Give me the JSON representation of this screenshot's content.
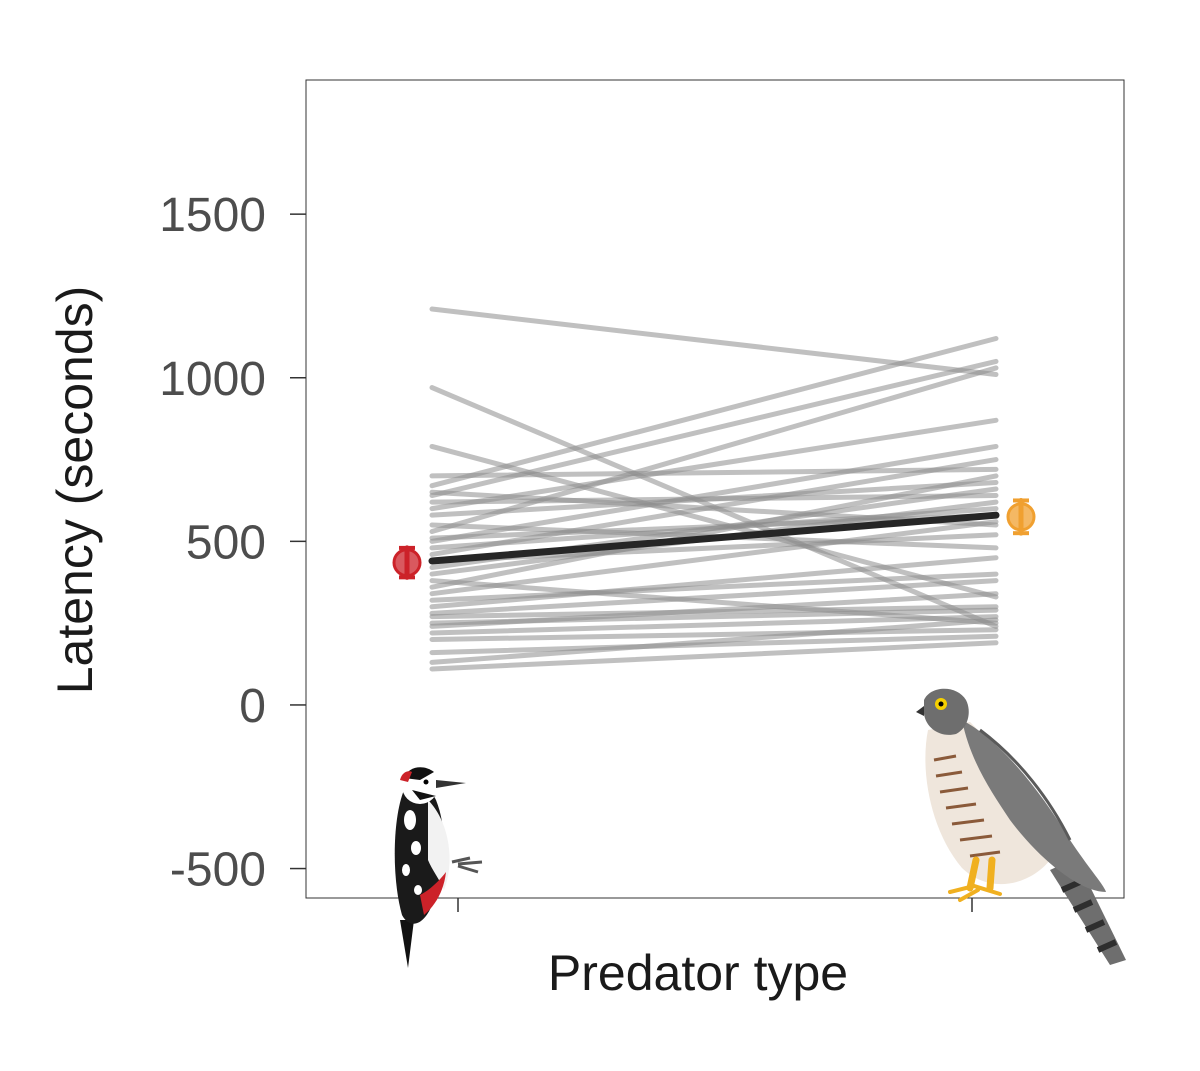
{
  "chart_data": {
    "type": "line",
    "xlabel": "Predator type",
    "ylabel": "Latency (seconds)",
    "ylim": [
      -590,
      1910
    ],
    "yticks": [
      -500,
      0,
      500,
      1000,
      1500
    ],
    "categories": [
      "Woodpecker",
      "Sparrowhawk"
    ],
    "individuals": [
      [
        1210,
        1010
      ],
      [
        970,
        240
      ],
      [
        790,
        330
      ],
      [
        700,
        720
      ],
      [
        670,
        1120
      ],
      [
        650,
        550
      ],
      [
        640,
        1050
      ],
      [
        620,
        640
      ],
      [
        600,
        870
      ],
      [
        580,
        680
      ],
      [
        550,
        480
      ],
      [
        530,
        1030
      ],
      [
        510,
        580
      ],
      [
        500,
        790
      ],
      [
        480,
        600
      ],
      [
        460,
        750
      ],
      [
        440,
        520
      ],
      [
        420,
        660
      ],
      [
        400,
        620
      ],
      [
        380,
        250
      ],
      [
        360,
        700
      ],
      [
        340,
        560
      ],
      [
        320,
        400
      ],
      [
        300,
        450
      ],
      [
        280,
        380
      ],
      [
        270,
        300
      ],
      [
        250,
        290
      ],
      [
        240,
        340
      ],
      [
        220,
        270
      ],
      [
        200,
        230
      ],
      [
        160,
        210
      ],
      [
        130,
        260
      ],
      [
        110,
        190
      ]
    ],
    "mean_line": [
      440,
      580
    ],
    "group_means": [
      {
        "category": "Woodpecker",
        "mean": 435,
        "error": 45,
        "color": "#cc2229"
      },
      {
        "category": "Sparrowhawk",
        "mean": 575,
        "error": 50,
        "color": "#f0a030"
      }
    ]
  }
}
